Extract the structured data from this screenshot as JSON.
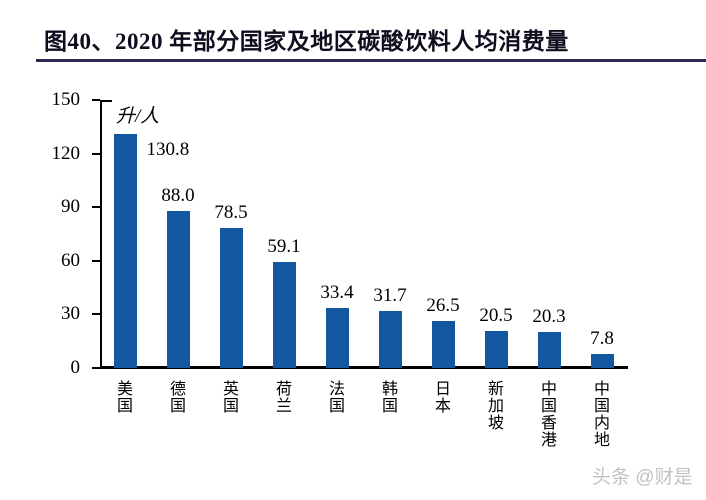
{
  "title": "图40、2020 年部分国家及地区碳酸饮料人均消费量",
  "watermark": "头条 @财是",
  "colors": {
    "bar": "#1257a0",
    "title_text": "#0d0d1e",
    "title_rule": "#2a2a52",
    "axis": "#000000",
    "watermark": "#c2c2c2"
  },
  "chart_data": {
    "type": "bar",
    "title": "图40、2020 年部分国家及地区碳酸饮料人均消费量",
    "unit_label": "升/人",
    "categories": [
      "美国",
      "德国",
      "英国",
      "荷兰",
      "法国",
      "韩国",
      "日本",
      "新加坡",
      "中国香港",
      "中国内地"
    ],
    "values": [
      130.8,
      88.0,
      78.5,
      59.1,
      33.4,
      31.7,
      26.5,
      20.5,
      20.3,
      7.8
    ],
    "data_labels": [
      "130.8",
      "88.0",
      "78.5",
      "59.1",
      "33.4",
      "31.7",
      "26.5",
      "20.5",
      "20.3",
      "7.8"
    ],
    "ylabel": "",
    "xlabel": "",
    "ylim": [
      0,
      150
    ],
    "yticks": [
      0,
      30,
      60,
      90,
      120,
      150
    ],
    "grid": false,
    "legend_position": "none",
    "bar_color": "#1257a0"
  }
}
